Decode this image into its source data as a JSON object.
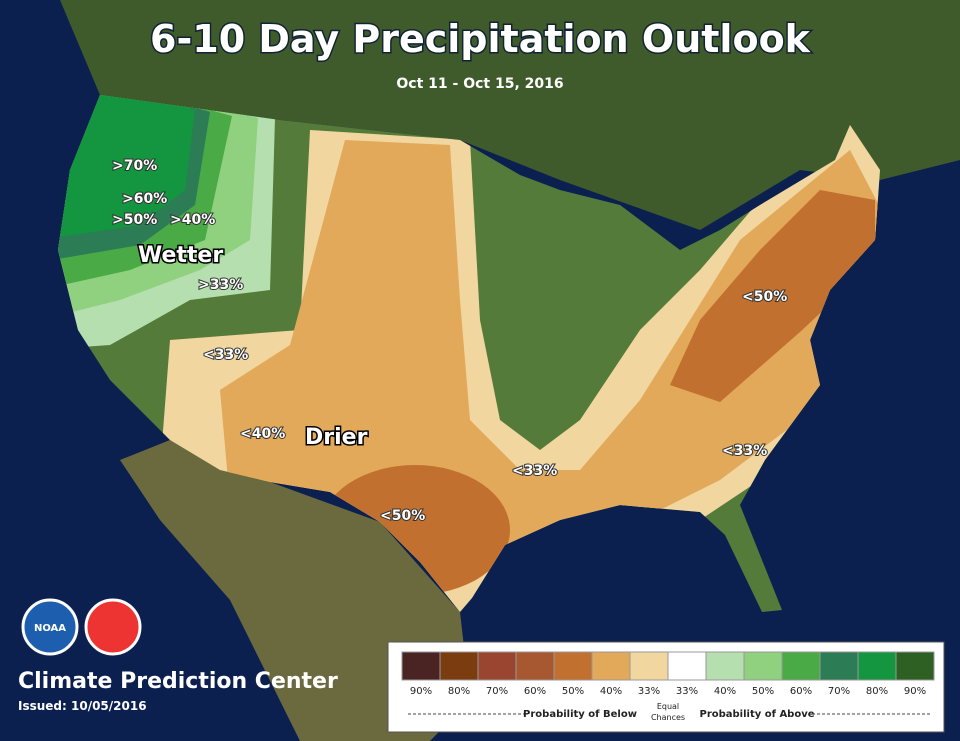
{
  "title": "6-10 Day Precipitation Outlook",
  "subtitle": "Oct 11 - Oct 15, 2016",
  "map_labels": [
    ">70%",
    ">60%",
    ">50%",
    ">40%",
    "Wetter",
    ">33%",
    "<50%",
    "<33%",
    "<40%",
    "Drier",
    "<50%",
    "<33%",
    "<33%"
  ],
  "logo": "NOAA",
  "footer": {
    "org": "Climate Prediction Center",
    "issued": "Issued: 10/05/2016"
  },
  "legend": {
    "items": [
      {
        "label": "90%",
        "color": "#4a2323"
      },
      {
        "label": "80%",
        "color": "#7b3c10"
      },
      {
        "label": "70%",
        "color": "#9a4530"
      },
      {
        "label": "60%",
        "color": "#a85830"
      },
      {
        "label": "50%",
        "color": "#c2702f"
      },
      {
        "label": "40%",
        "color": "#e2a95a"
      },
      {
        "label": "33%",
        "color": "#f1d6a0"
      },
      {
        "label": "33%",
        "color": "#ffffff"
      },
      {
        "label": "40%",
        "color": "#b6dfb0"
      },
      {
        "label": "50%",
        "color": "#8fd17e"
      },
      {
        "label": "60%",
        "color": "#4aaa45"
      },
      {
        "label": "70%",
        "color": "#2c7c55"
      },
      {
        "label": "80%",
        "color": "#13963f"
      },
      {
        "label": "90%",
        "color": "#2f6023"
      }
    ],
    "below": "Probability of Below",
    "equal": [
      "Equal",
      "Chances"
    ],
    "above": "Probability of Above"
  }
}
